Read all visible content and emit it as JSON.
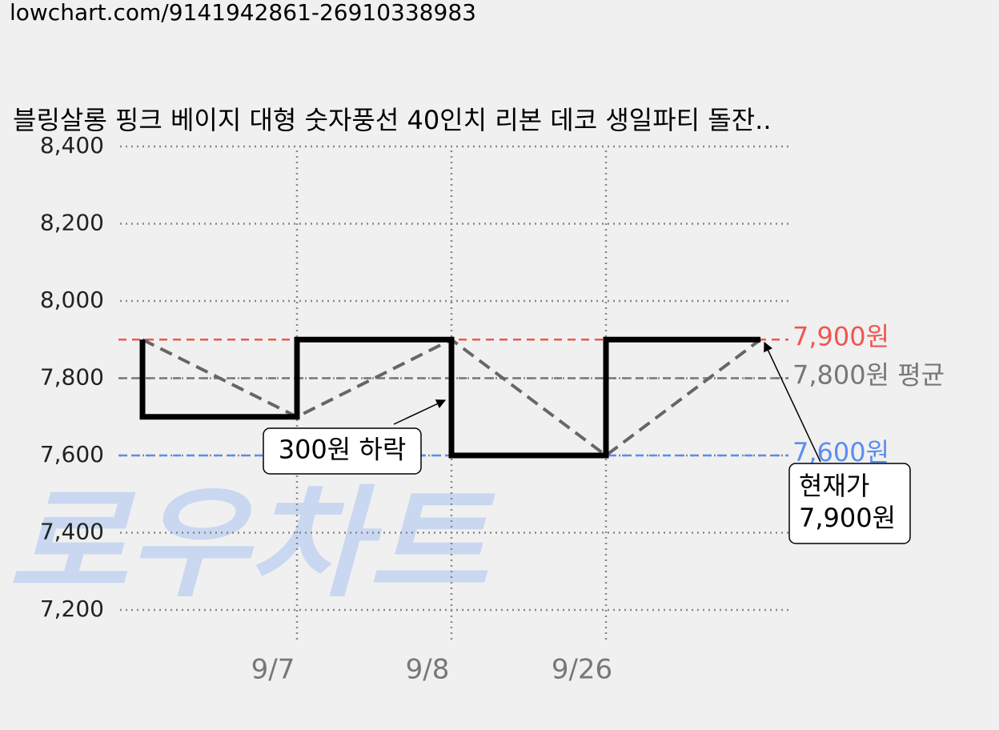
{
  "url": "lowchart.com/9141942861-26910338983",
  "chart_data": {
    "type": "step",
    "title": "블링살롱 핑크 베이지 대형 숫자풍선 40인치 리본 데코 생일파티 돌잔..",
    "watermark": "로우차트",
    "categories": [
      null,
      "9/7",
      "9/8",
      "9/26",
      null
    ],
    "series": [
      {
        "color": "#000000",
        "connector_color": "#666666",
        "values": [
          7900,
          7700,
          7900,
          7600,
          7900
        ]
      }
    ],
    "ylim": [
      7200,
      8400
    ],
    "yticks": [
      {
        "value": 7200,
        "label": "7,200"
      },
      {
        "value": 7400,
        "label": "7,400"
      },
      {
        "value": 7600,
        "label": "7,600"
      },
      {
        "value": 7800,
        "label": "7,800"
      },
      {
        "value": 8000,
        "label": "8,000"
      },
      {
        "value": 8200,
        "label": "8,200"
      },
      {
        "value": 8400,
        "label": "8,400"
      }
    ],
    "grid": true,
    "reference_lines": [
      {
        "value": 7900,
        "label": "7,900원",
        "color": "#f05650"
      },
      {
        "value": 7800,
        "label": "7,800원 평균",
        "color": "#777777"
      },
      {
        "value": 7600,
        "label": "7,600원",
        "color": "#5b8def"
      }
    ],
    "annotations": [
      {
        "text": [
          "300원 하락"
        ]
      },
      {
        "text": [
          "현재가",
          "7,900원"
        ]
      }
    ]
  }
}
